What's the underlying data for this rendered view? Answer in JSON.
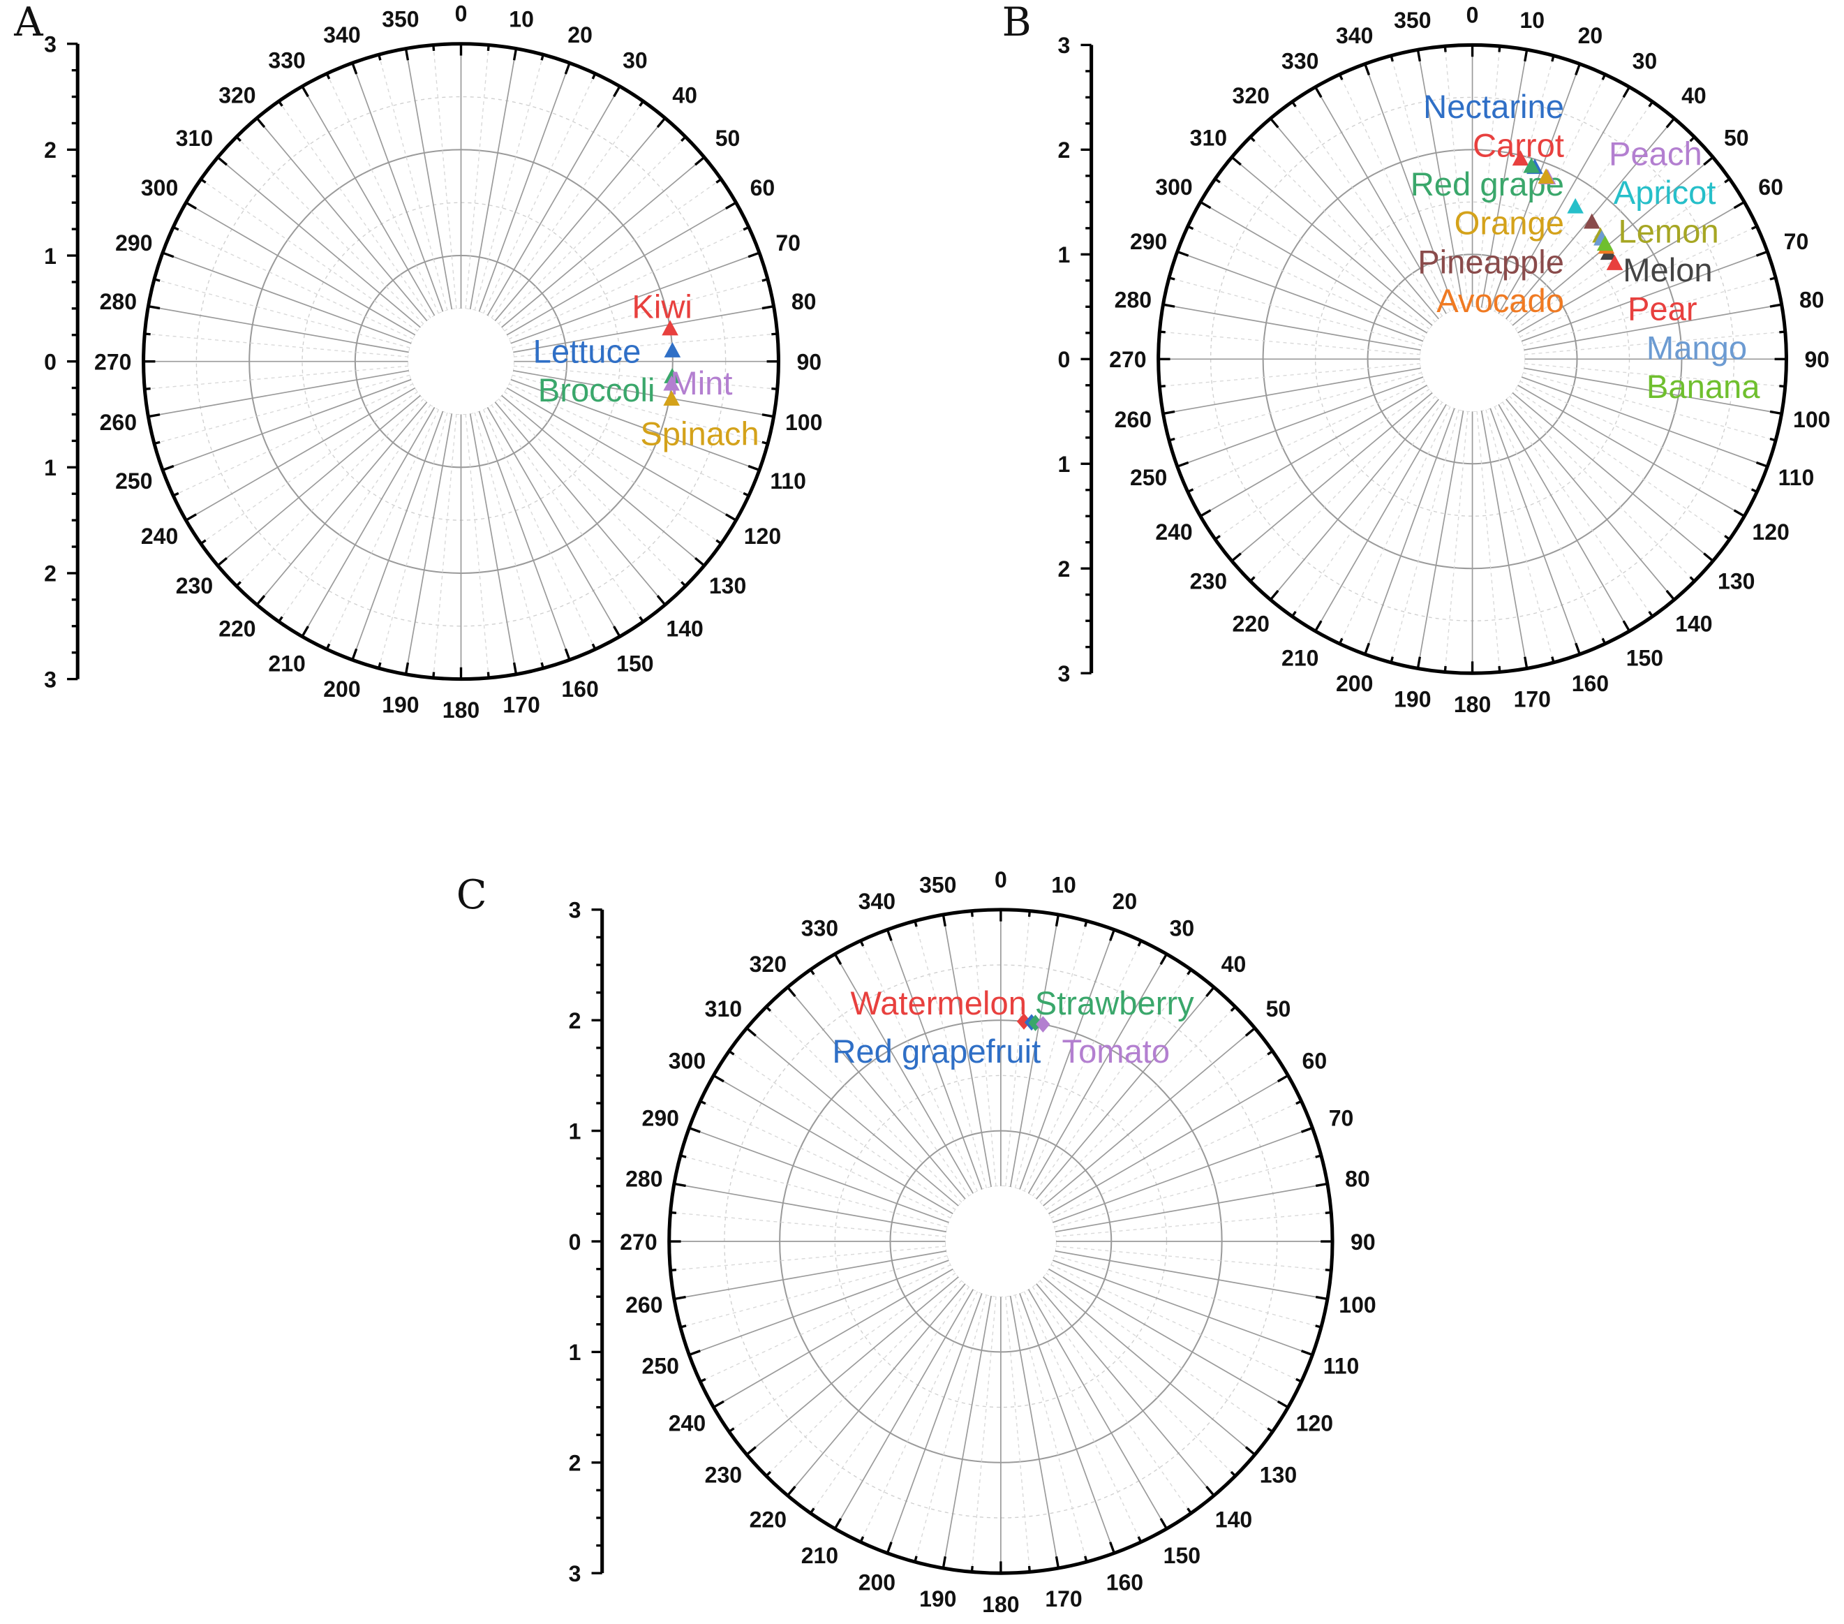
{
  "chart_data": [
    {
      "type": "scatter",
      "subtype": "polar",
      "panel": "A",
      "angle_unit": "degrees",
      "angle_ticks": [
        0,
        10,
        20,
        30,
        40,
        50,
        60,
        70,
        80,
        90,
        100,
        110,
        120,
        130,
        140,
        150,
        160,
        170,
        180,
        190,
        200,
        210,
        220,
        230,
        240,
        250,
        260,
        270,
        280,
        290,
        300,
        310,
        320,
        330,
        340,
        350
      ],
      "radial_axis_ticks": [
        "3",
        "2",
        "1",
        "0",
        "1",
        "2",
        "3"
      ],
      "rlim": [
        0,
        3
      ],
      "grid": true,
      "marker": "triangle",
      "points": [
        {
          "name": "Kiwi",
          "angle": 81,
          "r": 2.0,
          "color": "#e8403e"
        },
        {
          "name": "Lettuce",
          "angle": 87,
          "r": 2.0,
          "color": "#2f6fc6"
        },
        {
          "name": "Broccoli",
          "angle": 94,
          "r": 2.0,
          "color": "#3aa76b"
        },
        {
          "name": "Mint",
          "angle": 96,
          "r": 2.0,
          "color": "#b37fd0"
        },
        {
          "name": "Spinach",
          "angle": 100,
          "r": 2.02,
          "color": "#d4a21a"
        }
      ]
    },
    {
      "type": "scatter",
      "subtype": "polar",
      "panel": "B",
      "angle_unit": "degrees",
      "angle_ticks": [
        0,
        10,
        20,
        30,
        40,
        50,
        60,
        70,
        80,
        90,
        100,
        110,
        120,
        130,
        140,
        150,
        160,
        170,
        180,
        190,
        200,
        210,
        220,
        230,
        240,
        250,
        260,
        270,
        280,
        290,
        300,
        310,
        320,
        330,
        340,
        350
      ],
      "radial_axis_ticks": [
        "3",
        "2",
        "1",
        "0",
        "1",
        "2",
        "3"
      ],
      "rlim": [
        0,
        3
      ],
      "grid": true,
      "marker": "triangle",
      "points": [
        {
          "name": "Carrot",
          "angle": 13.5,
          "r": 1.97,
          "color": "#e8403e"
        },
        {
          "name": "Nectarine",
          "angle": 18,
          "r": 1.93,
          "color": "#2f6fc6"
        },
        {
          "name": "Red grape",
          "angle": 17,
          "r": 1.93,
          "color": "#3aa76b"
        },
        {
          "name": "Peach",
          "angle": 22.5,
          "r": 1.88,
          "color": "#b37fd0"
        },
        {
          "name": "Orange",
          "angle": 22,
          "r": 1.88,
          "color": "#d4a21a"
        },
        {
          "name": "Apricot",
          "angle": 34,
          "r": 1.76,
          "color": "#26bfc9"
        },
        {
          "name": "Lemon",
          "angle": 46,
          "r": 1.7,
          "color": "#a6a623"
        },
        {
          "name": "Pineapple",
          "angle": 41,
          "r": 1.74,
          "color": "#8a4b4b"
        },
        {
          "name": "Melon",
          "angle": 52,
          "r": 1.65,
          "color": "#444444"
        },
        {
          "name": "Avocado",
          "angle": 50,
          "r": 1.67,
          "color": "#f07a22"
        },
        {
          "name": "Pear",
          "angle": 56,
          "r": 1.64,
          "color": "#e8403e"
        },
        {
          "name": "Mango",
          "angle": 47,
          "r": 1.69,
          "color": "#6c9bd2"
        },
        {
          "name": "Banana",
          "angle": 49,
          "r": 1.68,
          "color": "#6fbf2e"
        }
      ]
    },
    {
      "type": "scatter",
      "subtype": "polar",
      "panel": "C",
      "angle_unit": "degrees",
      "angle_ticks": [
        0,
        10,
        20,
        30,
        40,
        50,
        60,
        70,
        80,
        90,
        100,
        110,
        120,
        130,
        140,
        150,
        160,
        170,
        180,
        190,
        200,
        210,
        220,
        230,
        240,
        250,
        260,
        270,
        280,
        290,
        300,
        310,
        320,
        330,
        340,
        350
      ],
      "radial_axis_ticks": [
        "3",
        "2",
        "1",
        "0",
        "1",
        "2",
        "3"
      ],
      "rlim": [
        0,
        3
      ],
      "grid": true,
      "marker": "diamond",
      "points": [
        {
          "name": "Watermelon",
          "angle": 6,
          "r": 2.0,
          "color": "#e8403e"
        },
        {
          "name": "Red grapefruit",
          "angle": 8,
          "r": 2.0,
          "color": "#2f6fc6"
        },
        {
          "name": "Strawberry",
          "angle": 9,
          "r": 2.0,
          "color": "#3aa76b"
        },
        {
          "name": "Tomato",
          "angle": 11,
          "r": 2.0,
          "color": "#b37fd0"
        }
      ]
    }
  ]
}
